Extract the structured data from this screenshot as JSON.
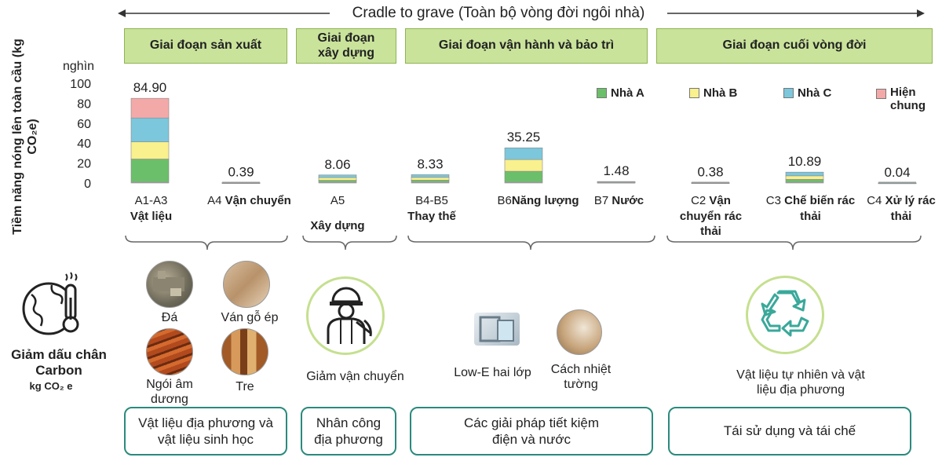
{
  "header": {
    "title": "Cradle to grave (Toàn bộ vòng đời ngôi nhà)"
  },
  "stages": [
    {
      "label": "Giai đoạn sản xuất"
    },
    {
      "label": "Giai đoạn xây dựng"
    },
    {
      "label": "Giai đoạn vận hành và bảo trì"
    },
    {
      "label": "Giai đoạn cuối vòng đời"
    }
  ],
  "chart_data": {
    "type": "bar",
    "stacked": true,
    "ylabel": "Tiềm năng nóng lên toàn cầu (kg CO₂e)",
    "yunit": "nghìn",
    "ylim": [
      0,
      100
    ],
    "yticks": [
      "100",
      "80",
      "60",
      "40",
      "20",
      "0"
    ],
    "grid": false,
    "legend_position": "top-right",
    "categories": [
      {
        "code": "A1-A3",
        "name": "Vật liệu"
      },
      {
        "code": "A4",
        "name": "Vận chuyển"
      },
      {
        "code": "A5",
        "name": "Xây dựng"
      },
      {
        "code": "B4-B5",
        "name": "Thay thế"
      },
      {
        "code": "B6",
        "name": "Năng lượng"
      },
      {
        "code": "B7",
        "name": "Nước"
      },
      {
        "code": "C2",
        "name": "Vận chuyển rác thải"
      },
      {
        "code": "C3",
        "name": "Chế biến rác thải"
      },
      {
        "code": "C4",
        "name": "Xử lý rác thải"
      }
    ],
    "totals": [
      "84.90",
      "0.39",
      "8.06",
      "8.33",
      "35.25",
      "1.48",
      "0.38",
      "10.89",
      "0.04"
    ],
    "series": [
      {
        "name": "Nhà A",
        "color": "#6cbf6a",
        "values": [
          24.0,
          0.13,
          2.7,
          2.8,
          11.75,
          0.5,
          0.13,
          3.6,
          0.01
        ]
      },
      {
        "name": "Nhà B",
        "color": "#f9f08e",
        "values": [
          17.2,
          0.13,
          2.7,
          2.8,
          11.75,
          0.5,
          0.13,
          3.6,
          0.01
        ]
      },
      {
        "name": "Nhà C",
        "color": "#7cc7dc",
        "values": [
          24.0,
          0.13,
          2.66,
          2.73,
          11.75,
          0.48,
          0.12,
          3.69,
          0.02
        ]
      },
      {
        "name": "Hiện chung",
        "color": "#f4a9a9",
        "values": [
          19.7,
          0,
          0,
          0,
          0,
          0,
          0,
          0,
          0
        ]
      }
    ]
  },
  "carbon": {
    "title": "Giảm dấu chân Carbon",
    "unit": "kg CO₂ e"
  },
  "materials": [
    {
      "label": "Đá"
    },
    {
      "label": "Ván gỗ ép"
    },
    {
      "label": "Ngói âm dương"
    },
    {
      "label": "Tre"
    }
  ],
  "construction": {
    "label": "Giảm vận chuyển"
  },
  "operation": [
    {
      "label": "Low-E hai lớp"
    },
    {
      "label": "Cách nhiệt tường"
    }
  ],
  "endlife": {
    "label": "Vật liệu tự nhiên và vật liệu địa phương"
  },
  "bottom_boxes": [
    {
      "label": "Vật liệu địa phương và vật liệu sinh học"
    },
    {
      "label": "Nhân công địa phương"
    },
    {
      "label": "Các giải pháp tiết kiệm điện và nước"
    },
    {
      "label": "Tái sử dụng và tái chế"
    }
  ]
}
